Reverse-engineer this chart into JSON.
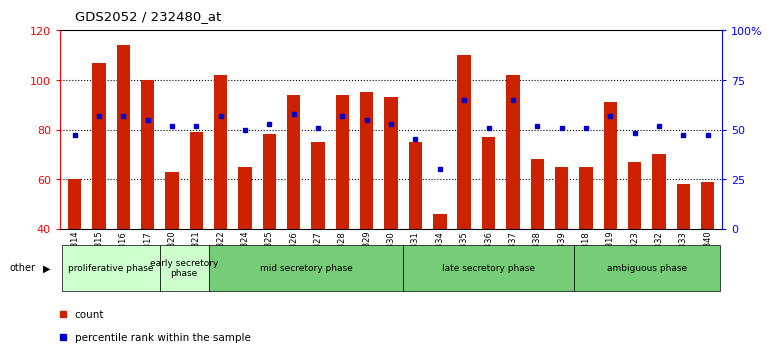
{
  "title": "GDS2052 / 232480_at",
  "samples": [
    "GSM109814",
    "GSM109815",
    "GSM109816",
    "GSM109817",
    "GSM109820",
    "GSM109821",
    "GSM109822",
    "GSM109824",
    "GSM109825",
    "GSM109826",
    "GSM109827",
    "GSM109828",
    "GSM109829",
    "GSM109830",
    "GSM109831",
    "GSM109834",
    "GSM109835",
    "GSM109836",
    "GSM109837",
    "GSM109838",
    "GSM109839",
    "GSM109818",
    "GSM109819",
    "GSM109823",
    "GSM109832",
    "GSM109833",
    "GSM109840"
  ],
  "counts": [
    60,
    107,
    114,
    100,
    63,
    79,
    102,
    65,
    78,
    94,
    75,
    94,
    95,
    93,
    75,
    46,
    110,
    77,
    102,
    68,
    65,
    65,
    91,
    67,
    70,
    58,
    59
  ],
  "percentile": [
    47,
    57,
    57,
    55,
    52,
    52,
    57,
    50,
    53,
    58,
    51,
    57,
    55,
    53,
    45,
    30,
    65,
    51,
    65,
    52,
    51,
    51,
    57,
    48,
    52,
    47,
    47
  ],
  "phase_configs": [
    {
      "label": "proliferative phase",
      "color": "#ccffcc",
      "start": 0,
      "end": 4
    },
    {
      "label": "early secretory\nphase",
      "color": "#ccffcc",
      "start": 4,
      "end": 6
    },
    {
      "label": "mid secretory phase",
      "color": "#77cc77",
      "start": 6,
      "end": 14
    },
    {
      "label": "late secretory phase",
      "color": "#77cc77",
      "start": 14,
      "end": 21
    },
    {
      "label": "ambiguous phase",
      "color": "#77cc77",
      "start": 21,
      "end": 27
    }
  ],
  "ylim_left": [
    40,
    120
  ],
  "ylim_right": [
    0,
    100
  ],
  "yticks_left": [
    40,
    60,
    80,
    100,
    120
  ],
  "yticks_right": [
    0,
    25,
    50,
    75,
    100
  ],
  "ytick_right_labels": [
    "0",
    "25",
    "50",
    "75",
    "100%"
  ],
  "bar_color": "#cc2200",
  "dot_color": "#0000cc",
  "bg_color": "#ffffff",
  "legend_items": [
    {
      "color": "#cc2200",
      "label": "count"
    },
    {
      "color": "#0000cc",
      "label": "percentile rank within the sample"
    }
  ]
}
